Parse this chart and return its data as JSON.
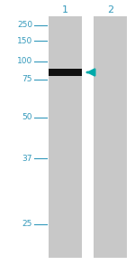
{
  "fig_width": 1.5,
  "fig_height": 2.93,
  "dpi": 100,
  "bg_color": "#ffffff",
  "lane_color": "#c8c8c8",
  "mw_labels": [
    "250",
    "150",
    "100",
    "75",
    "50",
    "37",
    "25"
  ],
  "mw_color": "#3399bb",
  "lane_labels": [
    "1",
    "2"
  ],
  "band_color": "#111111",
  "arrow_color": "#00aaaa",
  "font_size_mw": 6.5,
  "font_size_lane": 8
}
